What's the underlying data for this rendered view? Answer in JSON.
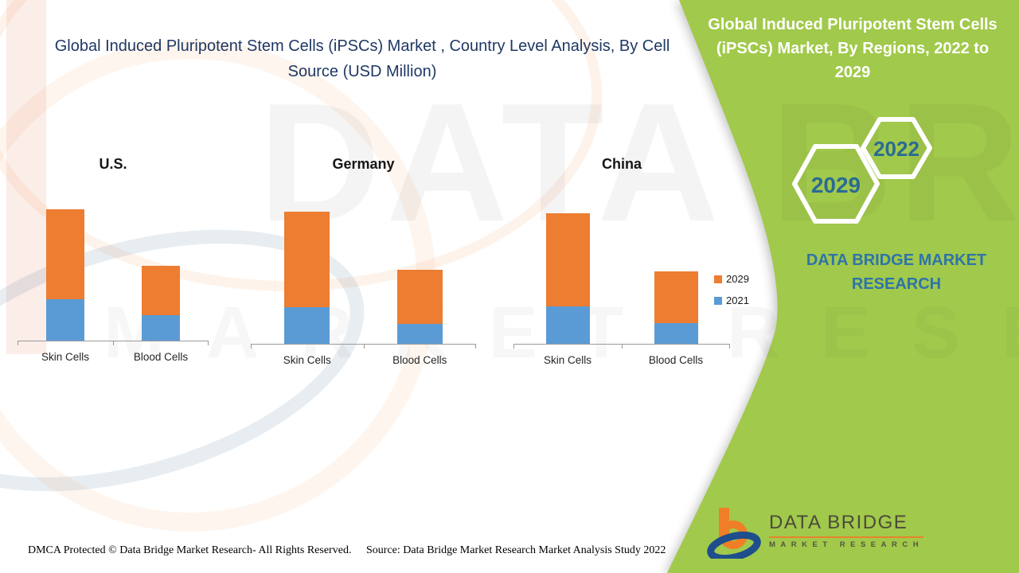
{
  "colors": {
    "accent_green": "#A1C94B",
    "navy_title": "#1F3864",
    "bar_orange": "#ED7D31",
    "bar_blue": "#5B9BD5",
    "hex_number_blue": "#2A6B94",
    "brand_blue": "#2E74A8"
  },
  "left_panel": {
    "title": "Global Induced Pluripotent Stem Cells (iPSCs) Market , Country Level Analysis, By Cell Source (USD Million)"
  },
  "right_panel": {
    "title": "Global Induced Pluripotent Stem Cells (iPSCs) Market, By Regions, 2022 to 2029",
    "hexagons": [
      {
        "label": "2029"
      },
      {
        "label": "2022"
      }
    ],
    "brand_text": "DATA BRIDGE MARKET RESEARCH"
  },
  "watermark": {
    "line1": "DATA BRIDGE",
    "line2": "MARKET RESEARCH"
  },
  "logo": {
    "title": "DATA BRIDGE",
    "subtitle": "MARKET RESEARCH"
  },
  "footer": {
    "dmca": "DMCA Protected © Data Bridge Market Research- All Rights Reserved.",
    "source": "Source: Data Bridge Market Research Market Analysis Study 2022"
  },
  "chart_data": {
    "type": "bar",
    "stacked": true,
    "title": "Global Induced Pluripotent Stem Cells (iPSCs) Market , Country Level Analysis, By Cell Source (USD Million)",
    "value_unit": "USD Million (relative units estimated from bar heights; no numeric axis shown)",
    "categories": [
      "Skin Cells",
      "Blood Cells"
    ],
    "legend": [
      {
        "name": "2029",
        "color": "#ED7D31"
      },
      {
        "name": "2021",
        "color": "#5B9BD5"
      }
    ],
    "legend_position": "right",
    "grid": false,
    "ylim": [
      0,
      170
    ],
    "groups": [
      {
        "country": "U.S.",
        "series": [
          {
            "name": "2021",
            "values": [
              52,
              32
            ]
          },
          {
            "name": "2029",
            "values": [
              113,
              62
            ]
          }
        ]
      },
      {
        "country": "Germany",
        "series": [
          {
            "name": "2021",
            "values": [
              46,
              25
            ]
          },
          {
            "name": "2029",
            "values": [
              120,
              68
            ]
          }
        ]
      },
      {
        "country": "China",
        "series": [
          {
            "name": "2021",
            "values": [
              47,
              26
            ]
          },
          {
            "name": "2029",
            "values": [
              117,
              65
            ]
          }
        ]
      }
    ]
  }
}
